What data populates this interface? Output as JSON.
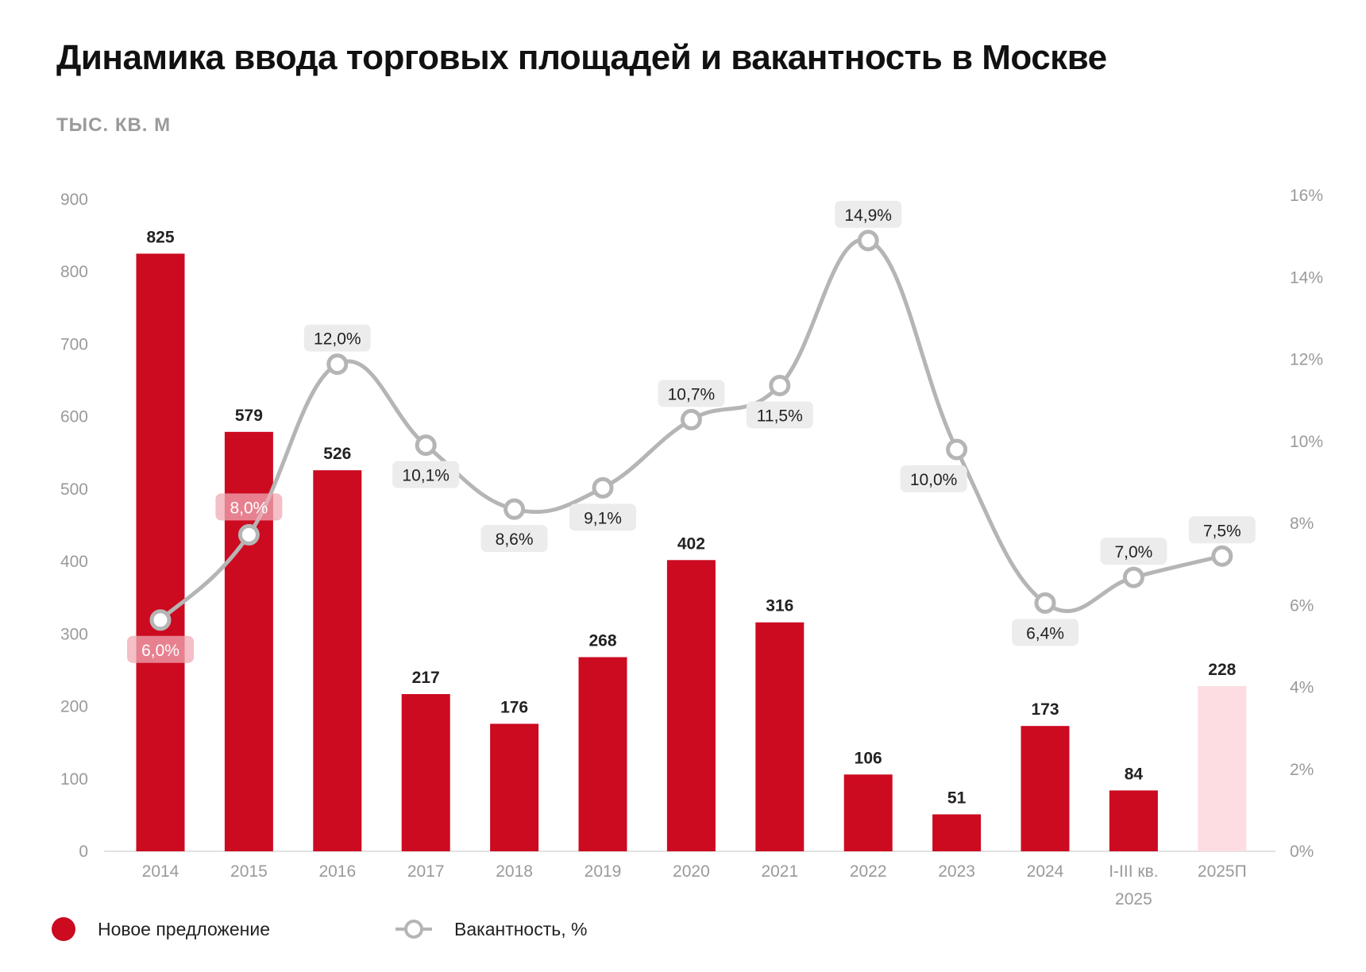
{
  "title": "Динамика ввода торговых площадей и вакантность в Москве",
  "subtitle": "ТЫС. КВ. М",
  "colors": {
    "bar": "#cc0a20",
    "forecast_bar": "#fddde1",
    "line": "#b5b5b5"
  },
  "legend": {
    "bars": "Новое предложение",
    "line": "Вакантность, %"
  },
  "chart_data": {
    "type": "bar+line",
    "title": "Динамика ввода торговых площадей и вакантность в Москве",
    "ylabel": "ТЫС. КВ. М",
    "categories": [
      "2014",
      "2015",
      "2016",
      "2017",
      "2018",
      "2019",
      "2020",
      "2021",
      "2022",
      "2023",
      "2024",
      "I-III кв. 2025",
      "2025П"
    ],
    "category_lines": [
      [
        "2014"
      ],
      [
        "2015"
      ],
      [
        "2016"
      ],
      [
        "2017"
      ],
      [
        "2018"
      ],
      [
        "2019"
      ],
      [
        "2020"
      ],
      [
        "2021"
      ],
      [
        "2022"
      ],
      [
        "2023"
      ],
      [
        "2024"
      ],
      [
        "I-III кв.",
        "2025"
      ],
      [
        "2025П"
      ]
    ],
    "series": [
      {
        "name": "Новое предложение",
        "type": "bar",
        "axis": "left",
        "values": [
          825,
          579,
          526,
          217,
          176,
          268,
          402,
          316,
          106,
          51,
          173,
          84,
          228
        ],
        "forecast_index": 12
      },
      {
        "name": "Вакантность, %",
        "type": "line",
        "axis": "right",
        "values": [
          6.0,
          8.0,
          12.0,
          10.1,
          8.6,
          9.1,
          10.7,
          11.5,
          14.9,
          10.0,
          6.4,
          7.0,
          7.5
        ],
        "labels": [
          "6,0%",
          "8,0%",
          "12,0%",
          "10,1%",
          "8,6%",
          "9,1%",
          "10,7%",
          "11,5%",
          "14,9%",
          "10,0%",
          "6,4%",
          "7,0%",
          "7,5%"
        ]
      }
    ],
    "y_left": {
      "ylim": [
        0,
        900
      ],
      "ticks": [
        "0",
        "100",
        "200",
        "300",
        "400",
        "500",
        "600",
        "700",
        "800",
        "900"
      ]
    },
    "y_right": {
      "ylim": [
        0,
        16
      ],
      "ticks": [
        "0%",
        "2%",
        "4%",
        "6%",
        "8%",
        "10%",
        "12%",
        "14%",
        "16%"
      ]
    },
    "grid": false,
    "legend_position": "bottom-left"
  }
}
